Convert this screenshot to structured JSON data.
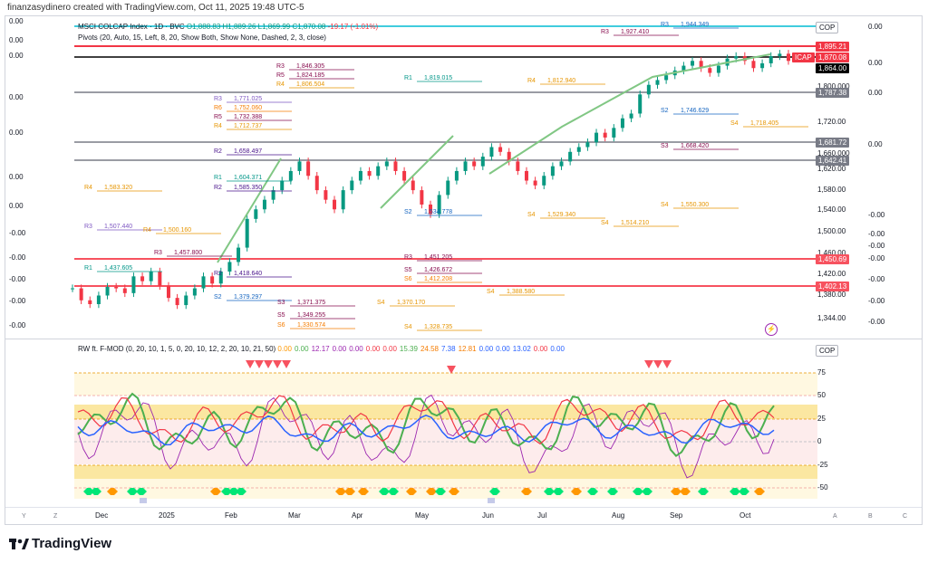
{
  "caption": "finanzasydinero created with TradingView.com, Oct 11, 2025 19:48 UTC-5",
  "main_pane": {
    "symbol_line": "MSCI COLCAP Index · 1D · BVC",
    "ohlc": "O1,888.83 H1,889.26 L1,869.99 C1,870.08",
    "change": "-19.17 (-1.01%)",
    "pivots_line": "Pivots (20, Auto, 15, Left, 8, 20, Show Both, Show None, Dashed, 2, 3, close)",
    "currency": "COP",
    "left_values": [
      "0.00",
      "0.00",
      "0.00",
      "0.00",
      "0.00",
      "0.00",
      "0.00",
      "-0.00",
      "-0.00",
      "-0.00",
      "-0.00",
      "-0.00"
    ],
    "right_values": [
      "0.00",
      "0.00",
      "0.00",
      "0.00",
      "-0.00",
      "-0.00",
      "-0.00",
      "-0.00",
      "-0.00",
      "-0.00",
      "-0.00"
    ],
    "price_axis": [
      "1,800.000",
      "1,720.00",
      "1,660.000",
      "1,620.00",
      "1,580.00",
      "1,540.00",
      "1,500.00",
      "1,460.00",
      "1,420.00",
      "1,380.00",
      "1,344.00"
    ],
    "price_tags": [
      {
        "text": "1,895.21",
        "color": "#f23645"
      },
      {
        "text": "ICAP",
        "color": "#f23645"
      },
      {
        "text": "1,870.08",
        "color": "#f23645"
      },
      {
        "text": "1,864.00",
        "color": "#000000"
      },
      {
        "text": "1,787.38",
        "color": "#787b86"
      },
      {
        "text": "1,681.72",
        "color": "#787b86"
      },
      {
        "text": "1,642.41",
        "color": "#787b86"
      },
      {
        "text": "1,450.69",
        "color": "#f7525f"
      },
      {
        "text": "1,402.13",
        "color": "#f7525f"
      }
    ],
    "pivot_labels": [
      {
        "t": "R3",
        "v": "1,846.305",
        "c": "#880e4f"
      },
      {
        "t": "R5",
        "v": "1,824.185",
        "c": "#880e4f"
      },
      {
        "t": "R4",
        "v": "1,806.504",
        "c": "#e69500"
      },
      {
        "t": "R3",
        "v": "1,771.025",
        "c": "#7e57c2"
      },
      {
        "t": "R6",
        "v": "1,752.060",
        "c": "#f57c00"
      },
      {
        "t": "R5",
        "v": "1,732.388",
        "c": "#880e4f"
      },
      {
        "t": "R4",
        "v": "1,712.737",
        "c": "#e69500"
      },
      {
        "t": "R2",
        "v": "1,658.497",
        "c": "#4a148c"
      },
      {
        "t": "R1",
        "v": "1,604.371",
        "c": "#009688"
      },
      {
        "t": "R2",
        "v": "1,585.350",
        "c": "#4a148c"
      },
      {
        "t": "R4",
        "v": "1,583.320",
        "c": "#e69500"
      },
      {
        "t": "R3",
        "v": "1,507.440",
        "c": "#7e57c2"
      },
      {
        "t": "R3",
        "v": "1,457.800",
        "c": "#880e4f"
      },
      {
        "t": "R1",
        "v": "1,437.605",
        "c": "#009688"
      },
      {
        "t": "R2",
        "v": "1,418.640",
        "c": "#4a148c"
      },
      {
        "t": "S2",
        "v": "1,379.297",
        "c": "#1565c0"
      },
      {
        "t": "S3",
        "v": "1,371.375",
        "c": "#880e4f"
      },
      {
        "t": "S5",
        "v": "1,349.255",
        "c": "#880e4f"
      },
      {
        "t": "S6",
        "v": "1,330.574",
        "c": "#f57c00"
      },
      {
        "t": "S4",
        "v": "1,328.735",
        "c": "#e69500"
      },
      {
        "t": "R1",
        "v": "1,819.015",
        "c": "#009688"
      },
      {
        "t": "R4",
        "v": "1,812.940",
        "c": "#e69500"
      },
      {
        "t": "R3",
        "v": "1,927.410",
        "c": "#880e4f"
      },
      {
        "t": "R3",
        "v": "1,944.349",
        "c": "#1565c0"
      },
      {
        "t": "S2",
        "v": "1,746.629",
        "c": "#1565c0"
      },
      {
        "t": "S4",
        "v": "1,718.405",
        "c": "#e69500"
      },
      {
        "t": "S3",
        "v": "1,668.420",
        "c": "#880e4f"
      },
      {
        "t": "S4",
        "v": "1,550.300",
        "c": "#e69500"
      },
      {
        "t": "S4",
        "v": "1,514.210",
        "c": "#e69500"
      },
      {
        "t": "S4",
        "v": "1,529.340",
        "c": "#e69500"
      },
      {
        "t": "S2",
        "v": "1,534.778",
        "c": "#1565c0"
      },
      {
        "t": "S5",
        "v": "1,426.672",
        "c": "#880e4f"
      },
      {
        "t": "S6",
        "v": "1,412.208",
        "c": "#f57c00"
      },
      {
        "t": "S4",
        "v": "1,388.580",
        "c": "#e69500"
      },
      {
        "t": "S4",
        "v": "1,370.170",
        "c": "#e69500"
      },
      {
        "t": "R3",
        "v": "1,451.205",
        "c": "#880e4f"
      },
      {
        "t": "R4",
        "v": "1,500.160",
        "c": "#e69500"
      }
    ],
    "candles": [
      1395,
      1370,
      1362,
      1380,
      1398,
      1395,
      1385,
      1420,
      1410,
      1430,
      1400,
      1375,
      1360,
      1380,
      1395,
      1420,
      1405,
      1430,
      1450,
      1480,
      1540,
      1560,
      1580,
      1600,
      1620,
      1640,
      1660,
      1630,
      1600,
      1580,
      1560,
      1600,
      1620,
      1640,
      1630,
      1650,
      1660,
      1640,
      1620,
      1600,
      1570,
      1550,
      1590,
      1620,
      1640,
      1660,
      1650,
      1670,
      1690,
      1680,
      1660,
      1640,
      1620,
      1610,
      1630,
      1650,
      1660,
      1680,
      1690,
      1700,
      1720,
      1710,
      1730,
      1750,
      1760,
      1800,
      1820,
      1830,
      1840,
      1850,
      1860,
      1870,
      1855,
      1845,
      1860,
      1875,
      1880,
      1870,
      1855,
      1865,
      1880,
      1885,
      1870
    ]
  },
  "indicator_pane": {
    "title": "RW ft. F-MOD (0, 20, 10, 1, 5, 0, 20, 10, 12, 2, 20, 10, 21, 50)",
    "values": [
      {
        "v": "0.00",
        "c": "#ff9800"
      },
      {
        "v": "0.00",
        "c": "#4caf50"
      },
      {
        "v": "12.17",
        "c": "#9c27b0"
      },
      {
        "v": "0.00",
        "c": "#9c27b0"
      },
      {
        "v": "0.00",
        "c": "#9c27b0"
      },
      {
        "v": "0.00",
        "c": "#f23645"
      },
      {
        "v": "0.00",
        "c": "#f23645"
      },
      {
        "v": "15.39",
        "c": "#4caf50"
      },
      {
        "v": "24.58",
        "c": "#f57c00"
      },
      {
        "v": "7.38",
        "c": "#2962ff"
      },
      {
        "v": "12.81",
        "c": "#f57c00"
      },
      {
        "v": "0.00",
        "c": "#2962ff"
      },
      {
        "v": "0.00",
        "c": "#2962ff"
      },
      {
        "v": "13.02",
        "c": "#2962ff"
      },
      {
        "v": "0.00",
        "c": "#f23645"
      },
      {
        "v": "0.00",
        "c": "#2962ff"
      }
    ],
    "currency": "COP",
    "axis": [
      "75",
      "50",
      "25",
      "0",
      "-25",
      "-50"
    ]
  },
  "time_axis": [
    "Dec",
    "2025",
    "Feb",
    "Mar",
    "Apr",
    "May",
    "Jun",
    "Jul",
    "Aug",
    "Sep",
    "Oct"
  ],
  "corner_letters": {
    "left_y": "Y",
    "left_z": "Z",
    "right_a": "A",
    "right_b": "B",
    "right_c": "C"
  },
  "brand": "TradingView"
}
